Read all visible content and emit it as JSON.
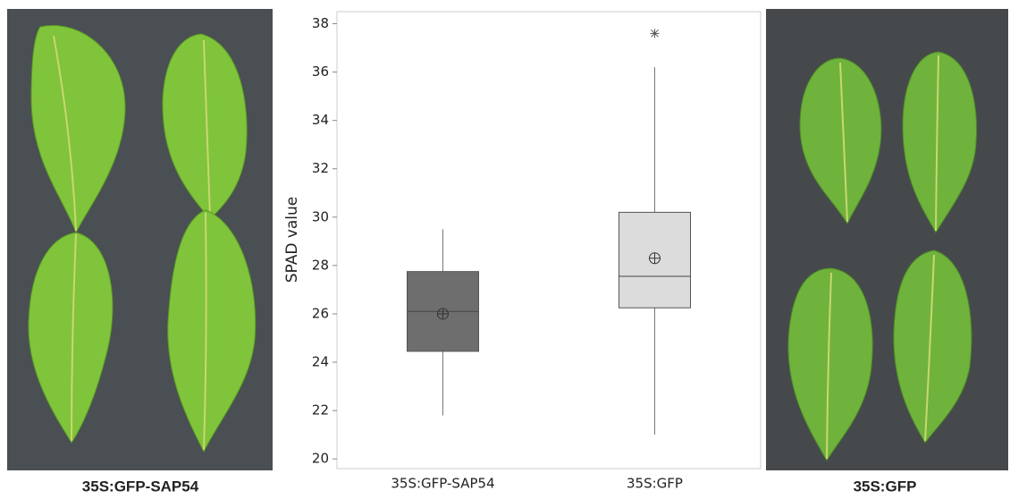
{
  "chart_data": {
    "type": "box",
    "ylabel": "SPAD value",
    "categories": [
      "35S:GFP-SAP54",
      "35S:GFP"
    ],
    "boxes": [
      {
        "min": 21.8,
        "q1": 24.45,
        "median": 26.1,
        "q3": 27.75,
        "max": 29.5,
        "mean": 26.0,
        "outliers": [],
        "color": "#6e6e6e"
      },
      {
        "min": 21.0,
        "q1": 26.25,
        "median": 27.55,
        "q3": 30.2,
        "max": 36.2,
        "mean": 28.3,
        "outliers": [
          37.6
        ],
        "color": "#dcdcdc"
      }
    ],
    "ylim": [
      19.6,
      38.5
    ],
    "yticks": [
      20,
      22,
      24,
      26,
      28,
      30,
      32,
      34,
      36,
      38
    ],
    "grid": false
  },
  "photos": {
    "left_caption": "35S:GFP-SAP54",
    "right_caption": "35S:GFP"
  }
}
